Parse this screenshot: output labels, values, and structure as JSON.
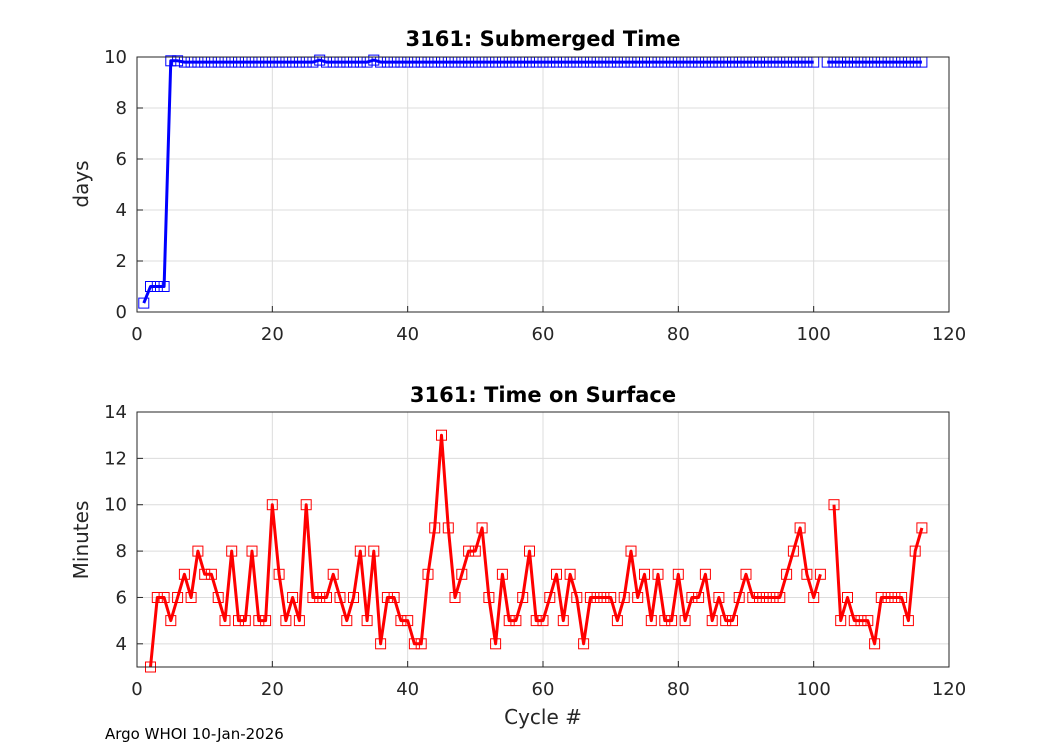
{
  "footer": "Argo WHOI 10-Jan-2026",
  "chart_data": [
    {
      "type": "line",
      "title": "3161: Submerged Time",
      "xlabel": "",
      "ylabel": "days",
      "xlim": [
        0,
        120
      ],
      "ylim": [
        0,
        10
      ],
      "xticks": [
        0,
        20,
        40,
        60,
        80,
        100,
        120
      ],
      "yticks": [
        0,
        2,
        4,
        6,
        8,
        10
      ],
      "grid": true,
      "color": "#0000ff",
      "marker": "square",
      "series": [
        {
          "x": [
            1,
            2,
            3,
            4,
            5,
            6,
            7,
            8,
            9,
            10,
            11,
            12,
            13,
            14,
            15,
            16,
            17,
            18,
            19,
            20,
            21,
            22,
            23,
            24,
            25,
            26,
            27,
            28,
            29,
            30,
            31,
            32,
            33,
            34,
            35,
            36,
            37,
            38,
            39,
            40,
            41,
            42,
            43,
            44,
            45,
            46,
            47,
            48,
            49,
            50,
            51,
            52,
            53,
            54,
            55,
            56,
            57,
            58,
            59,
            60,
            61,
            62,
            63,
            64,
            65,
            66,
            67,
            68,
            69,
            70,
            71,
            72,
            73,
            74,
            75,
            76,
            77,
            78,
            79,
            80,
            81,
            82,
            83,
            84,
            85,
            86,
            87,
            88,
            89,
            90,
            91,
            92,
            93,
            94,
            95,
            96,
            97,
            98,
            99,
            100,
            102,
            103,
            104,
            105,
            106,
            107,
            108,
            109,
            110,
            111,
            112,
            113,
            114,
            115,
            116
          ],
          "y": [
            0.35,
            1.0,
            1.0,
            1.0,
            9.85,
            9.85,
            9.8,
            9.8,
            9.8,
            9.8,
            9.8,
            9.8,
            9.8,
            9.8,
            9.8,
            9.8,
            9.8,
            9.8,
            9.8,
            9.8,
            9.8,
            9.8,
            9.8,
            9.8,
            9.8,
            9.8,
            9.88,
            9.8,
            9.8,
            9.8,
            9.8,
            9.8,
            9.8,
            9.8,
            9.88,
            9.8,
            9.8,
            9.8,
            9.8,
            9.8,
            9.8,
            9.8,
            9.8,
            9.8,
            9.8,
            9.8,
            9.8,
            9.8,
            9.8,
            9.8,
            9.8,
            9.8,
            9.8,
            9.8,
            9.8,
            9.8,
            9.8,
            9.8,
            9.8,
            9.8,
            9.8,
            9.8,
            9.8,
            9.8,
            9.8,
            9.8,
            9.8,
            9.8,
            9.8,
            9.8,
            9.8,
            9.8,
            9.8,
            9.8,
            9.8,
            9.8,
            9.8,
            9.8,
            9.8,
            9.8,
            9.8,
            9.8,
            9.8,
            9.8,
            9.8,
            9.8,
            9.8,
            9.8,
            9.8,
            9.8,
            9.8,
            9.8,
            9.8,
            9.8,
            9.8,
            9.8,
            9.8,
            9.8,
            9.8,
            9.8,
            9.8,
            9.8,
            9.8,
            9.8,
            9.8,
            9.8,
            9.8,
            9.8,
            9.8,
            9.8,
            9.8,
            9.8,
            9.8,
            9.8,
            9.8
          ]
        }
      ]
    },
    {
      "type": "line",
      "title": "3161: Time on Surface",
      "xlabel": "Cycle #",
      "ylabel": "Minutes",
      "xlim": [
        0,
        120
      ],
      "ylim": [
        3,
        14
      ],
      "xticks": [
        0,
        20,
        40,
        60,
        80,
        100,
        120
      ],
      "yticks": [
        4,
        6,
        8,
        10,
        12,
        14
      ],
      "grid": true,
      "color": "#ff0000",
      "marker": "square",
      "series": [
        {
          "x": [
            2,
            3,
            4,
            5,
            6,
            7,
            8,
            9,
            10,
            11,
            12,
            13,
            14,
            15,
            16,
            17,
            18,
            19,
            20,
            21,
            22,
            23,
            24,
            25,
            26,
            27,
            28,
            29,
            30,
            31,
            32,
            33,
            34,
            35,
            36,
            37,
            38,
            39,
            40,
            41,
            42,
            43,
            44,
            45,
            46,
            47,
            48,
            49,
            50,
            51,
            52,
            53,
            54,
            55,
            56,
            57,
            58,
            59,
            60,
            61,
            62,
            63,
            64,
            65,
            66,
            67,
            68,
            69,
            70,
            71,
            72,
            73,
            74,
            75,
            76,
            77,
            78,
            79,
            80,
            81,
            82,
            83,
            84,
            85,
            86,
            87,
            88,
            89,
            90,
            91,
            92,
            93,
            94,
            95,
            96,
            97,
            98,
            99,
            100,
            101
          ],
          "y": [
            3,
            6,
            6,
            5,
            6,
            7,
            6,
            8,
            7,
            7,
            6,
            5,
            8,
            5,
            5,
            8,
            5,
            5,
            10,
            7,
            5,
            6,
            5,
            10,
            6,
            6,
            6,
            7,
            6,
            5,
            6,
            8,
            5,
            8,
            4,
            6,
            6,
            5,
            5,
            4,
            4,
            7,
            9,
            13,
            9,
            6,
            7,
            8,
            8,
            9,
            6,
            4,
            7,
            5,
            5,
            6,
            8,
            5,
            5,
            6,
            7,
            5,
            7,
            6,
            4,
            6,
            6,
            6,
            6,
            5,
            6,
            8,
            6,
            7,
            5,
            7,
            5,
            5,
            7,
            5,
            6,
            6,
            7,
            5,
            6,
            5,
            5,
            6,
            7,
            6,
            6,
            6,
            6,
            6,
            7,
            8,
            9,
            7,
            6,
            7
          ]
        },
        {
          "x": [
            103,
            104,
            105,
            106,
            107,
            108,
            109,
            110,
            111,
            112,
            113,
            114,
            115,
            116
          ],
          "y": [
            10,
            5,
            6,
            5,
            5,
            5,
            4,
            6,
            6,
            6,
            6,
            5,
            8,
            9
          ]
        }
      ]
    }
  ]
}
